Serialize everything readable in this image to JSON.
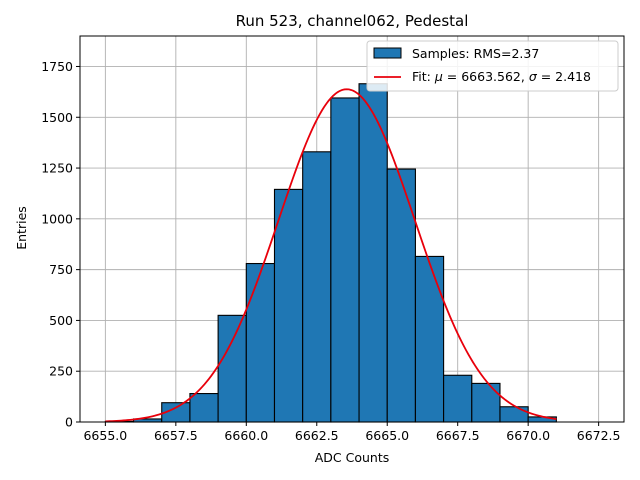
{
  "chart_data": {
    "type": "bar",
    "title": "Run 523, channel062, Pedestal",
    "xlabel": "ADC Counts",
    "ylabel": "Entries",
    "xlim": [
      6654.1,
      6673.4
    ],
    "ylim": [
      0,
      1900
    ],
    "grid": true,
    "legend_position": "top-right",
    "xticks": [
      6655.0,
      6657.5,
      6660.0,
      6662.5,
      6665.0,
      6667.5,
      6670.0,
      6672.5
    ],
    "xtick_labels": [
      "6655.0",
      "6657.5",
      "6660.0",
      "6662.5",
      "6665.0",
      "6667.5",
      "6670.0",
      "6672.5"
    ],
    "yticks": [
      0,
      250,
      500,
      750,
      1000,
      1250,
      1500,
      1750
    ],
    "ytick_labels": [
      "0",
      "250",
      "500",
      "750",
      "1000",
      "1250",
      "1500",
      "1750"
    ],
    "bin_edges": [
      6655,
      6656,
      6657,
      6658,
      6659,
      6660,
      6661,
      6662,
      6663,
      6664,
      6665,
      6666,
      6667,
      6668,
      6669,
      6670,
      6671
    ],
    "values": [
      3,
      15,
      95,
      140,
      525,
      780,
      1145,
      1330,
      1595,
      1665,
      1245,
      815,
      230,
      190,
      75,
      25
    ],
    "series": [
      {
        "name": "Samples: RMS=2.37",
        "kind": "histogram",
        "color": "#1f77b4"
      },
      {
        "name": "Fit: μ = 6663.562, σ = 2.418",
        "kind": "gaussian_fit",
        "color": "#e8000b",
        "mu": 6663.562,
        "sigma": 2.418,
        "amplitude": 1638,
        "x_range": [
          6655,
          6671
        ]
      }
    ],
    "legend": {
      "samples_label_prefix": "Samples: RMS=2.37",
      "fit_label_prefix": "Fit: ",
      "fit_mu_symbol": "μ",
      "fit_mu_value": " = 6663.562, ",
      "fit_sigma_symbol": "σ",
      "fit_sigma_value": " = 2.418"
    }
  }
}
